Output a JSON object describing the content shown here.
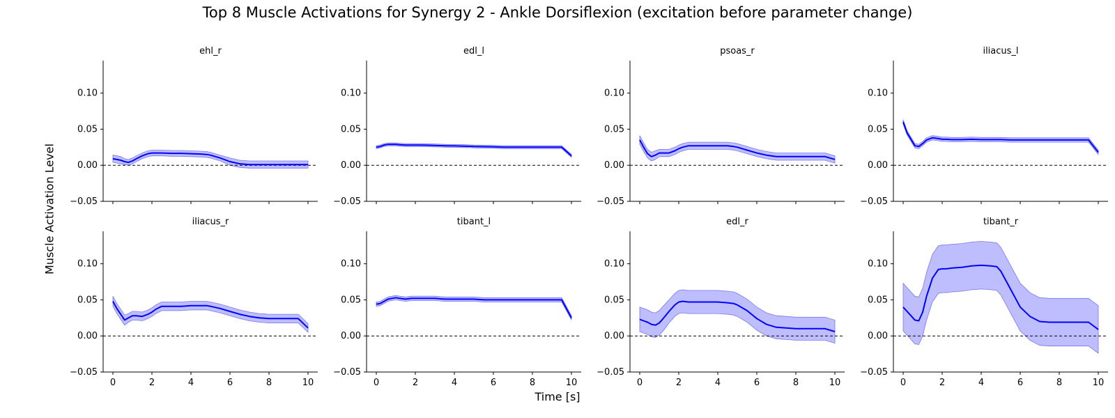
{
  "title": "Top 8 Muscle Activations for Synergy 2 - Ankle Dorsiflexion (excitation before parameter change)",
  "xlabel": "Time [s]",
  "ylabel": "Muscle Activation Level",
  "colors": {
    "line": "#0000ff",
    "band": "#b3b3ff",
    "band_edge": "#7777ee",
    "axis": "#000000"
  },
  "chart_data": {
    "type": "line",
    "grid": false,
    "layout": "2x4 subplots, shared x and y axes",
    "xlim": [
      -0.5,
      10.5
    ],
    "ylim": [
      -0.05,
      0.145
    ],
    "x_ticks": [
      0,
      2,
      4,
      6,
      8,
      10
    ],
    "x_tick_labels": [
      "0",
      "2",
      "4",
      "6",
      "8",
      "10"
    ],
    "y_ticks": [
      -0.05,
      0,
      0.05,
      0.1
    ],
    "y_tick_labels": [
      "−0.05",
      "0.00",
      "0.05",
      "0.10"
    ],
    "reference_line": {
      "y": 0,
      "style": "dashed"
    },
    "x": [
      0,
      0.2,
      0.4,
      0.6,
      0.8,
      1,
      1.2,
      1.5,
      1.8,
      2,
      2.2,
      2.5,
      3,
      3.5,
      4,
      4.5,
      4.8,
      5,
      5.5,
      6,
      6.5,
      7,
      7.5,
      8,
      8.5,
      9,
      9.5,
      10
    ],
    "series": [
      {
        "name": "ehl_r",
        "mean": [
          0.009,
          0.008,
          0.007,
          0.005,
          0.004,
          0.006,
          0.009,
          0.013,
          0.016,
          0.017,
          0.017,
          0.017,
          0.0165,
          0.0165,
          0.016,
          0.0155,
          0.015,
          0.014,
          0.01,
          0.005,
          0.002,
          0.001,
          0.001,
          0.001,
          0.001,
          0.001,
          0.001,
          0.001
        ],
        "band": [
          0.005,
          0.005,
          0.005,
          0.004,
          0.004,
          0.004,
          0.004,
          0.004,
          0.004,
          0.004,
          0.004,
          0.004,
          0.004,
          0.004,
          0.004,
          0.004,
          0.004,
          0.004,
          0.004,
          0.005,
          0.005,
          0.005,
          0.005,
          0.005,
          0.005,
          0.005,
          0.005,
          0.005
        ]
      },
      {
        "name": "edl_l",
        "mean": [
          0.025,
          0.026,
          0.028,
          0.029,
          0.029,
          0.029,
          0.0285,
          0.028,
          0.028,
          0.028,
          0.028,
          0.0278,
          0.0275,
          0.027,
          0.0268,
          0.0265,
          0.0263,
          0.026,
          0.0258,
          0.0255,
          0.025,
          0.025,
          0.025,
          0.025,
          0.025,
          0.025,
          0.025,
          0.013
        ],
        "band": [
          0.002,
          0.002,
          0.002,
          0.002,
          0.002,
          0.002,
          0.002,
          0.002,
          0.002,
          0.002,
          0.002,
          0.002,
          0.002,
          0.002,
          0.002,
          0.002,
          0.002,
          0.002,
          0.002,
          0.002,
          0.002,
          0.002,
          0.002,
          0.002,
          0.002,
          0.002,
          0.002,
          0.002
        ]
      },
      {
        "name": "psoas_r",
        "mean": [
          0.035,
          0.025,
          0.016,
          0.012,
          0.014,
          0.017,
          0.017,
          0.017,
          0.02,
          0.023,
          0.025,
          0.027,
          0.027,
          0.027,
          0.027,
          0.027,
          0.026,
          0.025,
          0.021,
          0.017,
          0.014,
          0.012,
          0.012,
          0.012,
          0.012,
          0.012,
          0.012,
          0.008
        ],
        "band": [
          0.006,
          0.006,
          0.006,
          0.006,
          0.006,
          0.005,
          0.005,
          0.005,
          0.005,
          0.005,
          0.005,
          0.005,
          0.005,
          0.005,
          0.005,
          0.005,
          0.005,
          0.005,
          0.005,
          0.005,
          0.005,
          0.005,
          0.005,
          0.005,
          0.005,
          0.005,
          0.005,
          0.005
        ]
      },
      {
        "name": "iliacus_l",
        "mean": [
          0.06,
          0.045,
          0.036,
          0.027,
          0.026,
          0.03,
          0.035,
          0.038,
          0.037,
          0.036,
          0.036,
          0.0355,
          0.0355,
          0.036,
          0.0355,
          0.0355,
          0.0355,
          0.0355,
          0.035,
          0.035,
          0.035,
          0.035,
          0.035,
          0.035,
          0.035,
          0.035,
          0.035,
          0.018
        ],
        "band": [
          0.003,
          0.003,
          0.003,
          0.003,
          0.003,
          0.003,
          0.003,
          0.003,
          0.003,
          0.003,
          0.003,
          0.003,
          0.003,
          0.003,
          0.003,
          0.003,
          0.003,
          0.003,
          0.003,
          0.003,
          0.003,
          0.003,
          0.003,
          0.003,
          0.003,
          0.003,
          0.003,
          0.003
        ]
      },
      {
        "name": "iliacus_r",
        "mean": [
          0.048,
          0.038,
          0.03,
          0.022,
          0.025,
          0.028,
          0.028,
          0.027,
          0.03,
          0.033,
          0.037,
          0.041,
          0.041,
          0.041,
          0.042,
          0.042,
          0.042,
          0.041,
          0.038,
          0.034,
          0.03,
          0.027,
          0.025,
          0.024,
          0.024,
          0.024,
          0.024,
          0.011
        ],
        "band": [
          0.007,
          0.007,
          0.007,
          0.007,
          0.006,
          0.006,
          0.006,
          0.006,
          0.006,
          0.006,
          0.006,
          0.006,
          0.006,
          0.006,
          0.006,
          0.006,
          0.006,
          0.006,
          0.006,
          0.006,
          0.006,
          0.006,
          0.006,
          0.006,
          0.006,
          0.006,
          0.006,
          0.006
        ]
      },
      {
        "name": "tibant_l",
        "mean": [
          0.044,
          0.045,
          0.048,
          0.051,
          0.052,
          0.053,
          0.052,
          0.051,
          0.052,
          0.052,
          0.052,
          0.052,
          0.052,
          0.051,
          0.051,
          0.051,
          0.051,
          0.051,
          0.05,
          0.05,
          0.05,
          0.05,
          0.05,
          0.05,
          0.05,
          0.05,
          0.05,
          0.025
        ],
        "band": [
          0.003,
          0.003,
          0.003,
          0.003,
          0.003,
          0.003,
          0.003,
          0.003,
          0.003,
          0.003,
          0.003,
          0.003,
          0.003,
          0.003,
          0.003,
          0.003,
          0.003,
          0.003,
          0.003,
          0.003,
          0.003,
          0.003,
          0.003,
          0.003,
          0.003,
          0.003,
          0.003,
          0.003
        ]
      },
      {
        "name": "edl_r",
        "mean": [
          0.023,
          0.021,
          0.019,
          0.016,
          0.015,
          0.018,
          0.024,
          0.034,
          0.043,
          0.047,
          0.048,
          0.047,
          0.047,
          0.047,
          0.047,
          0.046,
          0.045,
          0.043,
          0.035,
          0.024,
          0.016,
          0.012,
          0.011,
          0.01,
          0.01,
          0.01,
          0.01,
          0.006
        ],
        "band": [
          0.017,
          0.017,
          0.017,
          0.017,
          0.017,
          0.017,
          0.017,
          0.016,
          0.016,
          0.016,
          0.016,
          0.016,
          0.016,
          0.016,
          0.016,
          0.016,
          0.016,
          0.016,
          0.016,
          0.016,
          0.016,
          0.016,
          0.016,
          0.016,
          0.016,
          0.016,
          0.016,
          0.016
        ]
      },
      {
        "name": "tibant_r",
        "mean": [
          0.04,
          0.034,
          0.028,
          0.022,
          0.021,
          0.033,
          0.055,
          0.08,
          0.092,
          0.093,
          0.093,
          0.094,
          0.095,
          0.097,
          0.098,
          0.097,
          0.096,
          0.09,
          0.065,
          0.04,
          0.027,
          0.02,
          0.019,
          0.019,
          0.019,
          0.019,
          0.019,
          0.009
        ],
        "band": [
          0.033,
          0.033,
          0.033,
          0.033,
          0.033,
          0.033,
          0.033,
          0.033,
          0.033,
          0.033,
          0.033,
          0.033,
          0.033,
          0.033,
          0.033,
          0.033,
          0.033,
          0.033,
          0.033,
          0.033,
          0.033,
          0.033,
          0.033,
          0.033,
          0.033,
          0.033,
          0.033,
          0.033
        ]
      }
    ]
  }
}
